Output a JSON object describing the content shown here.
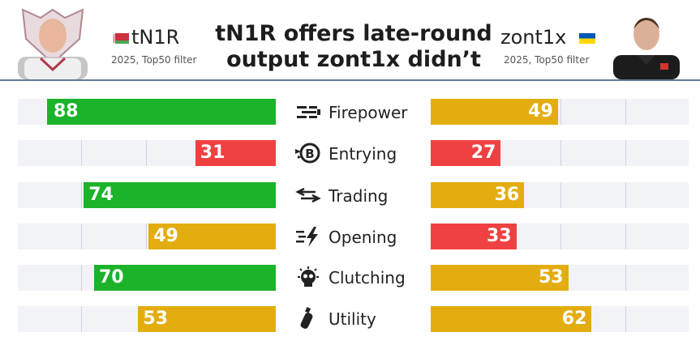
{
  "title": "tN1R offers late-round output zont1x didn’t",
  "left_player": {
    "name": "tN1R",
    "subtitle": "2025, Top50 filter",
    "flag": "belarus-flag-icon"
  },
  "right_player": {
    "name": "zont1x",
    "subtitle": "2025, Top50 filter",
    "flag": "ukraine-flag-icon"
  },
  "colors": {
    "high": "#1ab32a",
    "mid": "#e3ad10",
    "low": "#ef4141",
    "track": "#f2f3f6",
    "header_line": "#5f7a94"
  },
  "chart_data": {
    "type": "bar",
    "xlim": [
      0,
      100
    ],
    "categories": [
      "Firepower",
      "Entrying",
      "Trading",
      "Opening",
      "Clutching",
      "Utility"
    ],
    "icons": [
      "firepower-icon",
      "entrying-icon",
      "trading-icon",
      "opening-icon",
      "clutching-icon",
      "utility-icon"
    ],
    "series": [
      {
        "name": "tN1R",
        "values": [
          88,
          31,
          74,
          49,
          70,
          53
        ],
        "colors": [
          "high",
          "low",
          "high",
          "mid",
          "high",
          "mid"
        ]
      },
      {
        "name": "zont1x",
        "values": [
          49,
          27,
          36,
          33,
          53,
          62
        ],
        "colors": [
          "mid",
          "low",
          "mid",
          "low",
          "mid",
          "mid"
        ]
      }
    ]
  }
}
